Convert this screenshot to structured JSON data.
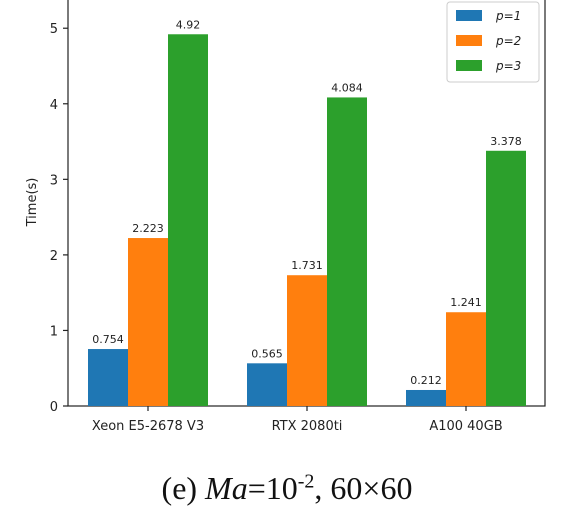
{
  "chart_data": {
    "type": "bar",
    "categories": [
      "Xeon E5-2678 V3",
      "RTX 2080ti",
      "A100 40GB"
    ],
    "series": [
      {
        "name": "p=1",
        "values": [
          0.754,
          0.565,
          0.212
        ],
        "labels": [
          "0.754",
          "0.565",
          "0.212"
        ],
        "color": "#1f77b4"
      },
      {
        "name": "p=2",
        "values": [
          2.223,
          1.731,
          1.241
        ],
        "labels": [
          "2.223",
          "1.731",
          "1.241"
        ],
        "color": "#ff7f0e"
      },
      {
        "name": "p=3",
        "values": [
          4.92,
          4.084,
          3.378
        ],
        "labels": [
          "4.92",
          "4.084",
          "3.378"
        ],
        "color": "#2ca02c"
      }
    ],
    "ylabel": "Time(s)",
    "yticks": [
      0,
      1,
      2,
      3,
      4,
      5
    ],
    "ylim": [
      0,
      5.4
    ],
    "legend_position": "top-right",
    "grid": false
  },
  "caption": {
    "prefix": "(e) ",
    "ma": "Ma",
    "eq": "=10",
    "exp": "-2",
    "suffix": ", 60×60"
  }
}
